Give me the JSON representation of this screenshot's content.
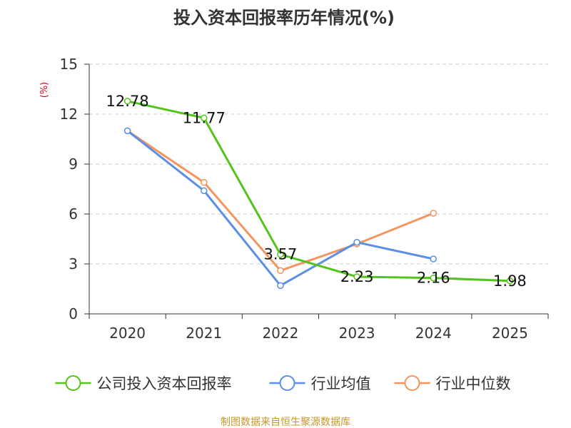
{
  "chart_data": {
    "type": "line",
    "title": "投入资本回报率历年情况(%)",
    "ylabel": "(%)",
    "xlabel": "",
    "categories": [
      "2020",
      "2021",
      "2022",
      "2023",
      "2024",
      "2025"
    ],
    "y_ticks": [
      "0",
      "3",
      "6",
      "9",
      "12",
      "15"
    ],
    "ylim": [
      0,
      15
    ],
    "grid": true,
    "legend_position": "bottom",
    "series": [
      {
        "name": "公司投入资本回报率",
        "color": "#52c41a",
        "values": [
          12.78,
          11.77,
          3.57,
          2.23,
          2.16,
          1.98
        ],
        "labels": [
          "12.78",
          "11.77",
          "3.57",
          "2.23",
          "2.16",
          "1.98"
        ]
      },
      {
        "name": "行业均值",
        "color": "#5b8ee6",
        "values": [
          11.0,
          7.4,
          1.7,
          4.3,
          3.3,
          null
        ]
      },
      {
        "name": "行业中位数",
        "color": "#f4955f",
        "values": [
          11.0,
          7.9,
          2.6,
          4.2,
          6.05,
          null
        ]
      }
    ],
    "source": "制图数据来自恒生聚源数据库"
  },
  "colors": {
    "axis": "#333333",
    "grid": "#cccccc",
    "unit_label": "#d9001b",
    "source": "#c8962c"
  }
}
